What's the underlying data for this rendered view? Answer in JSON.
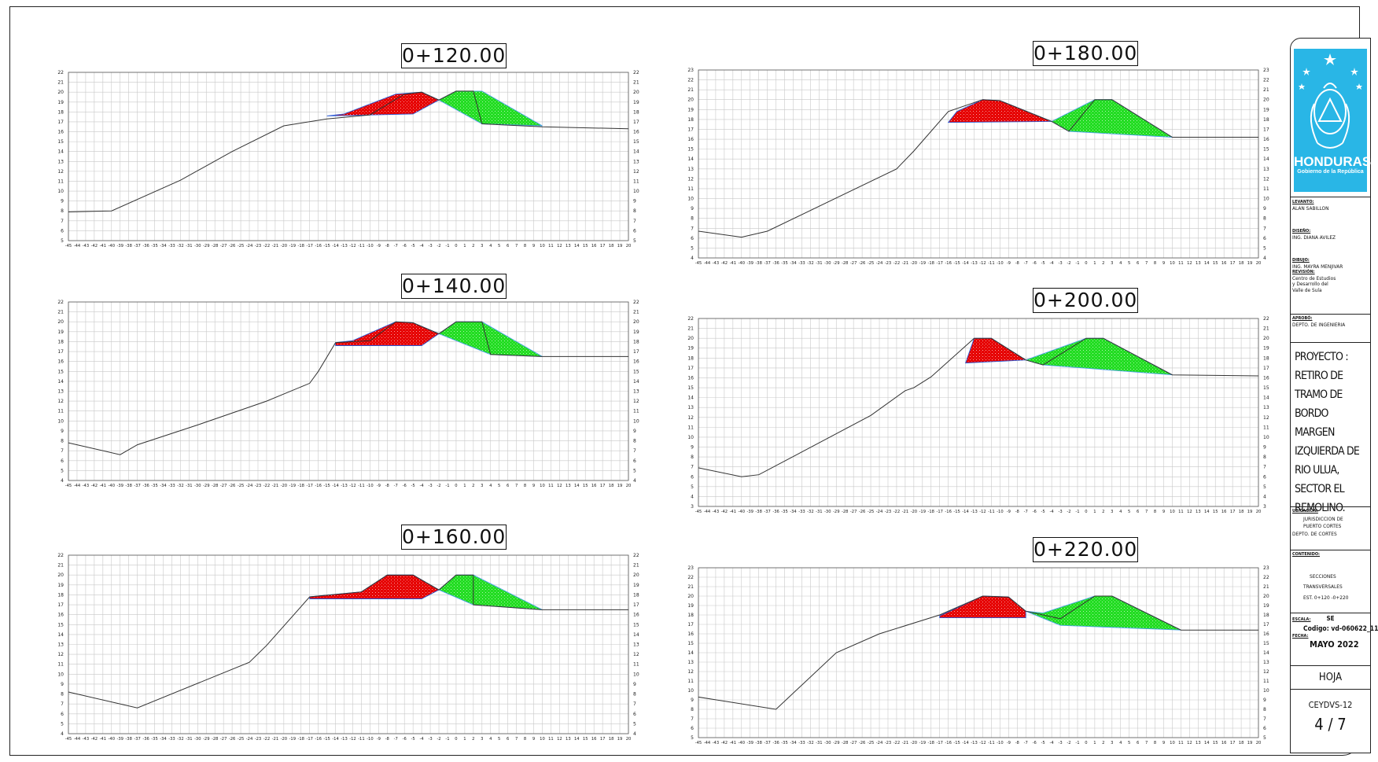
{
  "sections": [
    {
      "title": "0+120.00",
      "ylim": [
        5,
        22
      ],
      "xmin": -45,
      "xmax": 20,
      "ground": [
        [
          -45,
          7.9
        ],
        [
          -40,
          8
        ],
        [
          -32,
          11.1
        ],
        [
          -26,
          14
        ],
        [
          -20,
          16.6
        ],
        [
          -15,
          17.3
        ],
        [
          -10,
          17.7
        ],
        [
          -6,
          19.8
        ],
        [
          -4,
          20
        ],
        [
          -2,
          19.2
        ],
        [
          0,
          20.1
        ],
        [
          2,
          20.1
        ],
        [
          3,
          16.8
        ],
        [
          10,
          16.5
        ],
        [
          20,
          16.3
        ]
      ],
      "cut": [
        [
          -15,
          17.6
        ],
        [
          -13,
          17.8
        ],
        [
          -7,
          19.8
        ],
        [
          -4,
          20
        ],
        [
          -2,
          19.2
        ],
        [
          -5,
          17.8
        ],
        [
          -15,
          17.6
        ]
      ],
      "fill": [
        [
          -2,
          19.2
        ],
        [
          0,
          20.1
        ],
        [
          3,
          20.1
        ],
        [
          10,
          16.6
        ],
        [
          3,
          16.8
        ],
        [
          -2,
          19.2
        ]
      ]
    },
    {
      "title": "0+140.00",
      "ylim": [
        4,
        22
      ],
      "xmin": -45,
      "xmax": 20,
      "ground": [
        [
          -45,
          7.8
        ],
        [
          -39,
          6.6
        ],
        [
          -37,
          7.6
        ],
        [
          -30,
          9.6
        ],
        [
          -22,
          12
        ],
        [
          -17,
          13.8
        ],
        [
          -16,
          15
        ],
        [
          -14,
          17.9
        ],
        [
          -10,
          18.1
        ],
        [
          -7,
          20
        ],
        [
          -5,
          19.9
        ],
        [
          -2,
          18.8
        ],
        [
          0,
          20
        ],
        [
          3,
          20
        ],
        [
          4,
          16.7
        ],
        [
          10,
          16.5
        ],
        [
          20,
          16.5
        ]
      ],
      "cut": [
        [
          -14,
          17.9
        ],
        [
          -12,
          18.1
        ],
        [
          -7,
          20
        ],
        [
          -5,
          19.9
        ],
        [
          -2,
          18.8
        ],
        [
          -4,
          17.6
        ],
        [
          -14,
          17.6
        ],
        [
          -14,
          17.9
        ]
      ],
      "fill": [
        [
          -2,
          18.8
        ],
        [
          0,
          20
        ],
        [
          3,
          20
        ],
        [
          10,
          16.5
        ],
        [
          4,
          16.7
        ],
        [
          -2,
          18.8
        ]
      ]
    },
    {
      "title": "0+160.00",
      "ylim": [
        4,
        22
      ],
      "xmin": -45,
      "xmax": 20,
      "ground": [
        [
          -45,
          8.2
        ],
        [
          -37,
          6.6
        ],
        [
          -24,
          11.2
        ],
        [
          -22,
          12.9
        ],
        [
          -17,
          17.8
        ],
        [
          -11,
          18.3
        ],
        [
          -8,
          20
        ],
        [
          -5,
          20
        ],
        [
          -2,
          18.5
        ],
        [
          0,
          20
        ],
        [
          2,
          20
        ],
        [
          2,
          17
        ],
        [
          10,
          16.5
        ],
        [
          20,
          16.5
        ]
      ],
      "cut": [
        [
          -17,
          17.8
        ],
        [
          -11,
          18.3
        ],
        [
          -8,
          20
        ],
        [
          -5,
          20
        ],
        [
          -2,
          18.5
        ],
        [
          -4,
          17.6
        ],
        [
          -17,
          17.6
        ],
        [
          -17,
          17.8
        ]
      ],
      "fill": [
        [
          -2,
          18.5
        ],
        [
          0,
          20
        ],
        [
          2,
          20
        ],
        [
          10,
          16.5
        ],
        [
          2,
          17
        ],
        [
          -2,
          18.5
        ]
      ]
    },
    {
      "title": "0+180.00",
      "ylim": [
        4,
        23
      ],
      "xmin": -45,
      "xmax": 20,
      "ground": [
        [
          -45,
          6.7
        ],
        [
          -40,
          6.1
        ],
        [
          -37,
          6.7
        ],
        [
          -22,
          13
        ],
        [
          -20,
          14.8
        ],
        [
          -16,
          18.8
        ],
        [
          -12,
          20
        ],
        [
          -10,
          19.9
        ],
        [
          -4,
          17.8
        ],
        [
          -2,
          16.8
        ],
        [
          1,
          20
        ],
        [
          3,
          20
        ],
        [
          10,
          16.2
        ],
        [
          20,
          16.2
        ]
      ],
      "cut": [
        [
          -16,
          17.7
        ],
        [
          -15,
          18.8
        ],
        [
          -12,
          20
        ],
        [
          -10,
          19.9
        ],
        [
          -4,
          17.8
        ],
        [
          -16,
          17.7
        ]
      ],
      "fill": [
        [
          -4,
          17.8
        ],
        [
          1,
          20
        ],
        [
          3,
          20
        ],
        [
          10,
          16.2
        ],
        [
          -2,
          16.8
        ],
        [
          -4,
          17.8
        ]
      ]
    },
    {
      "title": "0+200.00",
      "ylim": [
        3,
        22
      ],
      "xmin": -45,
      "xmax": 20,
      "ground": [
        [
          -45,
          6.9
        ],
        [
          -40,
          6
        ],
        [
          -38,
          6.2
        ],
        [
          -25,
          12.2
        ],
        [
          -21,
          14.7
        ],
        [
          -20,
          15
        ],
        [
          -18,
          16.1
        ],
        [
          -13,
          20
        ],
        [
          -11,
          20
        ],
        [
          -7,
          17.8
        ],
        [
          -5,
          17.3
        ],
        [
          0,
          20
        ],
        [
          2,
          20
        ],
        [
          10,
          16.3
        ],
        [
          20,
          16.2
        ]
      ],
      "cut": [
        [
          -14,
          17.5
        ],
        [
          -13,
          20
        ],
        [
          -11,
          20
        ],
        [
          -7,
          17.8
        ],
        [
          -14,
          17.5
        ]
      ],
      "fill": [
        [
          -7,
          17.8
        ],
        [
          0,
          20
        ],
        [
          2,
          20
        ],
        [
          10,
          16.3
        ],
        [
          -5,
          17.3
        ],
        [
          -7,
          17.8
        ]
      ]
    },
    {
      "title": "0+220.00",
      "ylim": [
        5,
        23
      ],
      "xmin": -45,
      "xmax": 20,
      "ground": [
        [
          -45,
          9.3
        ],
        [
          -36,
          8
        ],
        [
          -29,
          14
        ],
        [
          -24,
          16
        ],
        [
          -17,
          18
        ],
        [
          -12,
          20
        ],
        [
          -9,
          19.9
        ],
        [
          -7,
          18.4
        ],
        [
          -3,
          17.6
        ],
        [
          1,
          20
        ],
        [
          3,
          20
        ],
        [
          11,
          16.4
        ],
        [
          20,
          16.4
        ]
      ],
      "cut": [
        [
          -17,
          17.9
        ],
        [
          -12,
          20
        ],
        [
          -9,
          19.9
        ],
        [
          -7,
          18.4
        ],
        [
          -7,
          17.7
        ],
        [
          -17,
          17.7
        ],
        [
          -17,
          17.9
        ]
      ],
      "fill": [
        [
          -7,
          18.4
        ],
        [
          -5,
          18.2
        ],
        [
          1,
          20
        ],
        [
          3,
          20
        ],
        [
          11,
          16.4
        ],
        [
          -3,
          16.9
        ],
        [
          -7,
          18.4
        ]
      ]
    }
  ],
  "titleblock": {
    "country": "HONDURAS",
    "gov": "Gobierno de la República",
    "levanto_label": "LEVANTO:",
    "levanto": "ALAN SABILLON",
    "diseno_label": "DISEÑO:",
    "diseno": "ING. DIANA AVILEZ",
    "dibujo_label": "DIBUJO:",
    "dibujo": "ING. MAYRA MENJIVAR",
    "revision_label": "REVISIÓN:",
    "revision": "Centro de Estudios y Desarrollo del Valle de Sula",
    "aprobo_label": "APROBÓ:",
    "aprobo": "DEPTO. DE INGENIERIA",
    "proyecto": "PROYECTO : RETIRO DE TRAMO DE BORDO MARGEN IZQUIERDA DE RIO ULUA, SECTOR EL REMOLINO.",
    "ubicacion_label": "UBICACIÓN:",
    "ubicacion_1": "JURISDICCION DE",
    "ubicacion_2": "PUERTO CORTES",
    "ubicacion_3": "DEPTO.   DE  CORTES",
    "contenido_label": "CONTENIDO:",
    "contenido_1": "SECCIONES",
    "contenido_2": "TRANSVERSALES",
    "contenido_3": "EST. 0+120 -0+220",
    "escala_label": "ESCALA:",
    "escala": "SE",
    "codigo": "Codigo: vd-060622_11",
    "fecha_label": "FECHA:",
    "fecha": "MAYO 2022",
    "hoja_label": "HOJA",
    "hoja_code": "CEYDVS-12",
    "hoja_num": "4  /  7"
  }
}
